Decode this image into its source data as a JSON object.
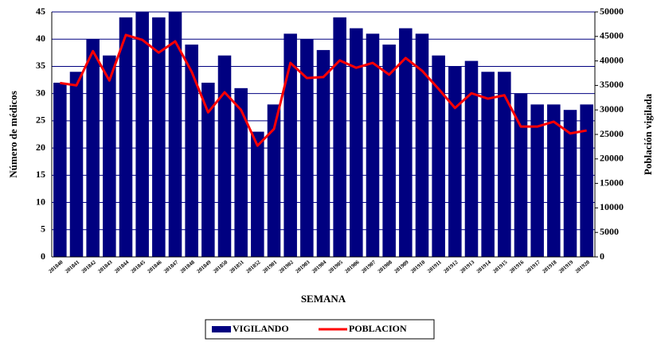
{
  "chart_data": {
    "type": "bar",
    "x_label": "SEMANA",
    "y_label": "Número de médicos",
    "y2_label": "Población vigilada",
    "categories": [
      "201840",
      "201841",
      "201842",
      "201843",
      "201844",
      "201845",
      "201846",
      "201847",
      "201848",
      "201849",
      "201850",
      "201851",
      "201852",
      "201901",
      "201902",
      "201903",
      "201904",
      "201905",
      "201906",
      "201907",
      "201908",
      "201909",
      "201910",
      "201911",
      "201912",
      "201913",
      "201914",
      "201915",
      "201916",
      "201917",
      "201918",
      "201919",
      "201920"
    ],
    "series": [
      {
        "name": "VIGILANDO",
        "color": "#000080",
        "values": [
          32,
          34,
          40,
          37,
          44,
          45,
          44,
          45,
          39,
          32,
          37,
          31,
          23,
          28,
          41,
          40,
          38,
          44,
          42,
          41,
          39,
          42,
          41,
          37,
          35,
          36,
          34,
          34,
          30,
          28,
          28,
          27,
          28
        ]
      },
      {
        "name": "POBLACION",
        "color": "#ff0000",
        "axis": "y2",
        "values": [
          35500,
          35000,
          42000,
          36000,
          45300,
          44300,
          41700,
          44000,
          37800,
          29500,
          33600,
          30000,
          22700,
          26100,
          39600,
          36500,
          36700,
          40100,
          38600,
          39600,
          37200,
          40600,
          38000,
          34300,
          30400,
          33400,
          32300,
          33000,
          26600,
          26600,
          27600,
          25200,
          25800
        ]
      }
    ],
    "ylim": [
      0,
      45
    ],
    "yticks": [
      0,
      5,
      10,
      15,
      20,
      25,
      30,
      35,
      40,
      45
    ],
    "y2lim": [
      0,
      50000
    ],
    "y2ticks": [
      0,
      5000,
      10000,
      15000,
      20000,
      25000,
      30000,
      35000,
      40000,
      45000,
      50000
    ],
    "grid": true
  }
}
